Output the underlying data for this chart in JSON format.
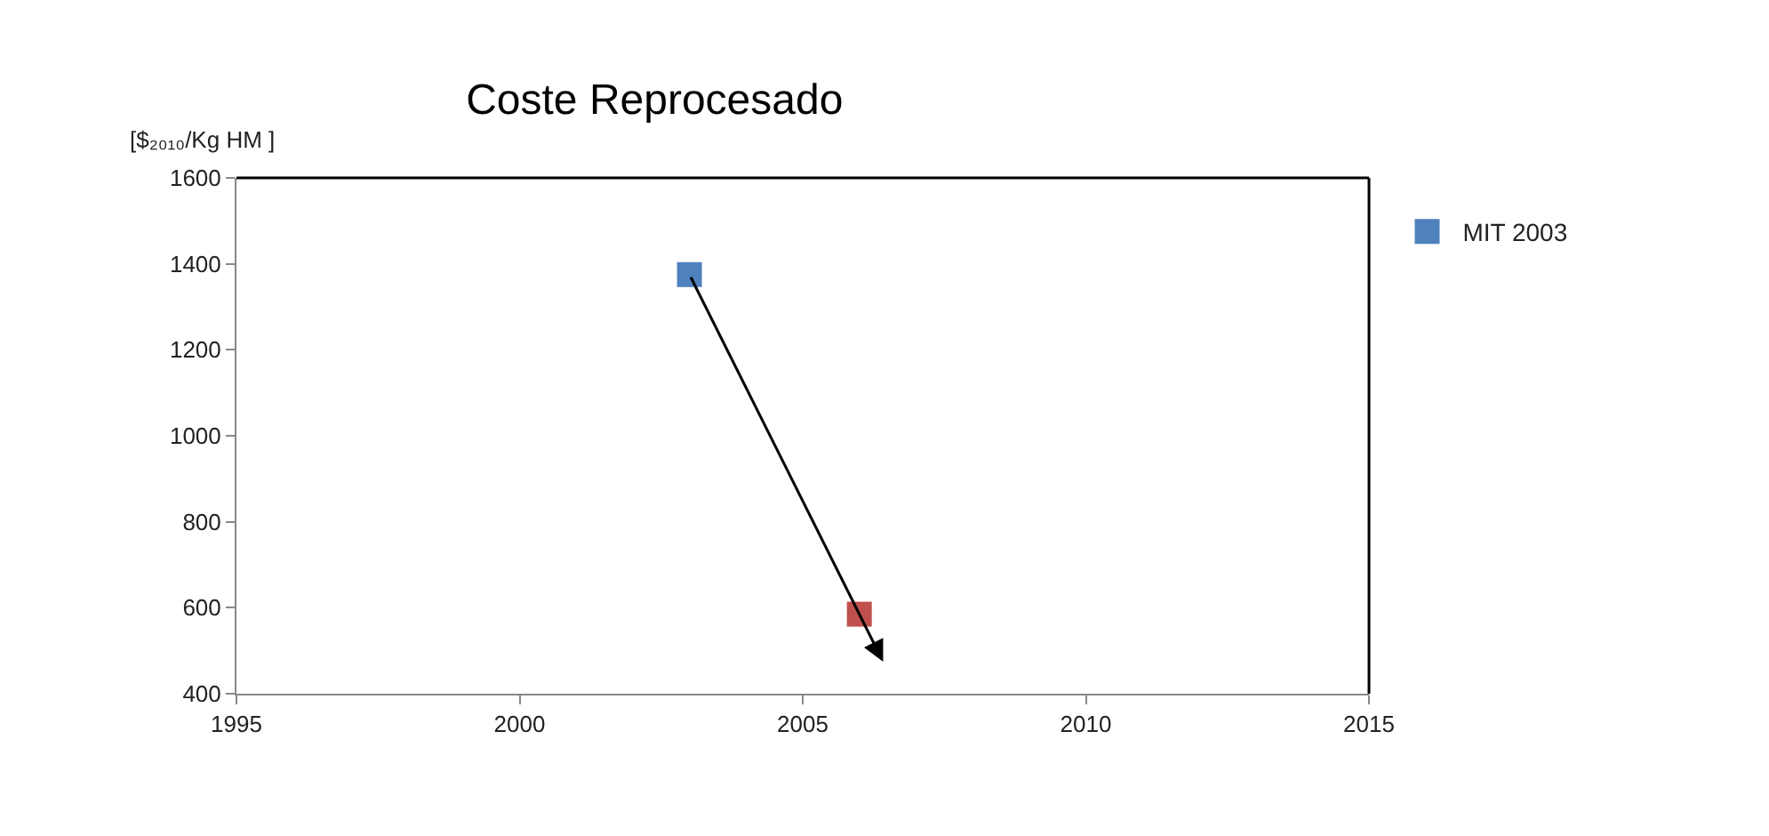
{
  "chart_data": {
    "type": "scatter",
    "title": "Coste Reprocesado",
    "ylabel": "[$₂₀₁₀/Kg HM ]",
    "series": [
      {
        "name": "MIT 2003",
        "color": "#4f81bd",
        "x": [
          2003
        ],
        "values": [
          1375
        ]
      },
      {
        "color": "#c0504d",
        "x": [
          2006
        ],
        "values": [
          585
        ]
      }
    ],
    "xlim": [
      1995,
      2015
    ],
    "xticks": [
      1995,
      2000,
      2005,
      2010,
      2015
    ],
    "ylim": [
      400,
      1600
    ],
    "yticks": [
      400,
      600,
      800,
      1000,
      1200,
      1400,
      1600
    ],
    "grid": false,
    "legend": "right",
    "marker": "square"
  }
}
